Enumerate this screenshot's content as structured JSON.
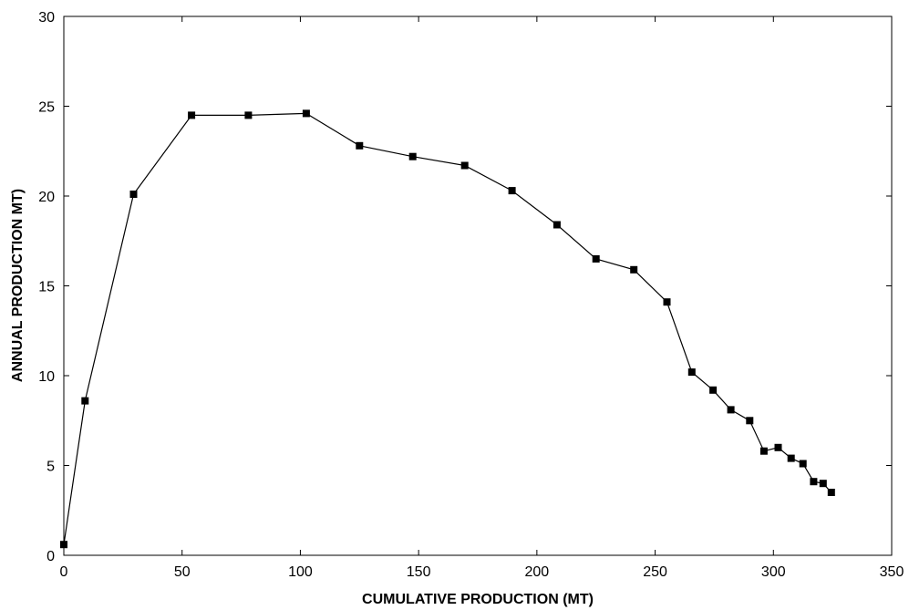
{
  "chart_data": {
    "type": "line",
    "title": "",
    "xlabel": "CUMULATIVE PRODUCTION (MT)",
    "ylabel": "ANNUAL PRODUCTION MT)",
    "xlim": [
      0,
      350
    ],
    "ylim": [
      0,
      30
    ],
    "xticks": [
      0,
      50,
      100,
      150,
      200,
      250,
      300,
      350
    ],
    "yticks": [
      0,
      5,
      10,
      15,
      20,
      25,
      30
    ],
    "grid": false,
    "legend": "none",
    "marker": "square",
    "line_color": "#000000",
    "series": [
      {
        "x": [
          0,
          9,
          29.5,
          54,
          78,
          102.5,
          125,
          147.5,
          169.5,
          189.5,
          208.5,
          225,
          241,
          255,
          265.5,
          274.5,
          282,
          290,
          296,
          302,
          307.5,
          312.5,
          317,
          321,
          324.5
        ],
        "y": [
          0.6,
          8.6,
          20.1,
          24.5,
          24.5,
          24.6,
          22.8,
          22.2,
          21.7,
          20.3,
          18.4,
          16.5,
          15.9,
          14.1,
          10.2,
          9.2,
          8.1,
          7.5,
          5.8,
          6.0,
          5.4,
          5.1,
          4.1,
          4.0,
          3.5
        ]
      }
    ]
  }
}
